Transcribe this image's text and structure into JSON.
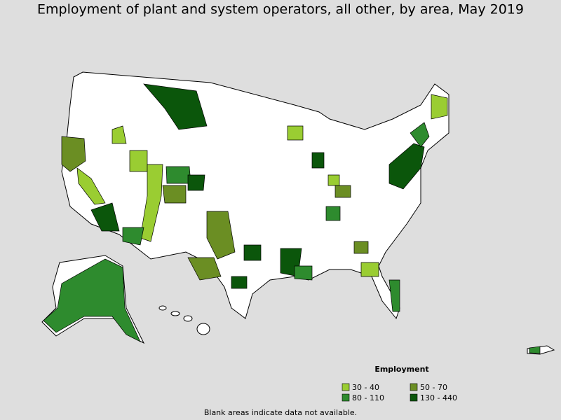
{
  "title": "Employment of plant and system operators, all other, by area, May 2019",
  "legend": {
    "title": "Employment",
    "items": [
      {
        "label": "30 - 40",
        "color": "#9acd32"
      },
      {
        "label": "50 - 70",
        "color": "#6b8e23"
      },
      {
        "label": "80 - 110",
        "color": "#2e8b2e"
      },
      {
        "label": "130 - 440",
        "color": "#0b560b"
      }
    ]
  },
  "note": "Blank areas indicate data not available."
}
